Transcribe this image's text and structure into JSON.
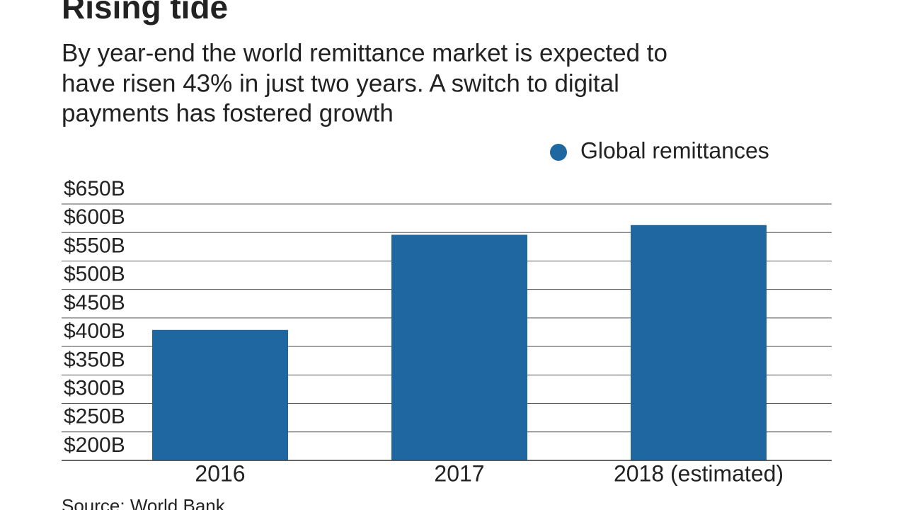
{
  "chart_data": {
    "type": "bar",
    "title": "Rising tide",
    "subtitle": [
      "By year-end the world remittance market is expected to",
      "have risen 43% in just two years. A switch to digital",
      "payments has fostered growth"
    ],
    "source": "Source: World Bank",
    "categories": [
      "2016",
      "2017",
      "2018 (estimated)"
    ],
    "series": [
      {
        "name": "Global remittances",
        "color": "#1f67a0",
        "values": [
          429,
          596,
          613
        ]
      }
    ],
    "ylim": [
      200,
      650
    ],
    "yticks": [
      {
        "value": 200,
        "label": "$200B"
      },
      {
        "value": 250,
        "label": "$250B"
      },
      {
        "value": 300,
        "label": "$300B"
      },
      {
        "value": 350,
        "label": "$350B"
      },
      {
        "value": 400,
        "label": "$400B"
      },
      {
        "value": 450,
        "label": "$450B"
      },
      {
        "value": 500,
        "label": "$500B"
      },
      {
        "value": 550,
        "label": "$550B"
      },
      {
        "value": 600,
        "label": "$600B"
      },
      {
        "value": 650,
        "label": "$650B"
      }
    ],
    "grid": true,
    "legend": "top-right"
  }
}
